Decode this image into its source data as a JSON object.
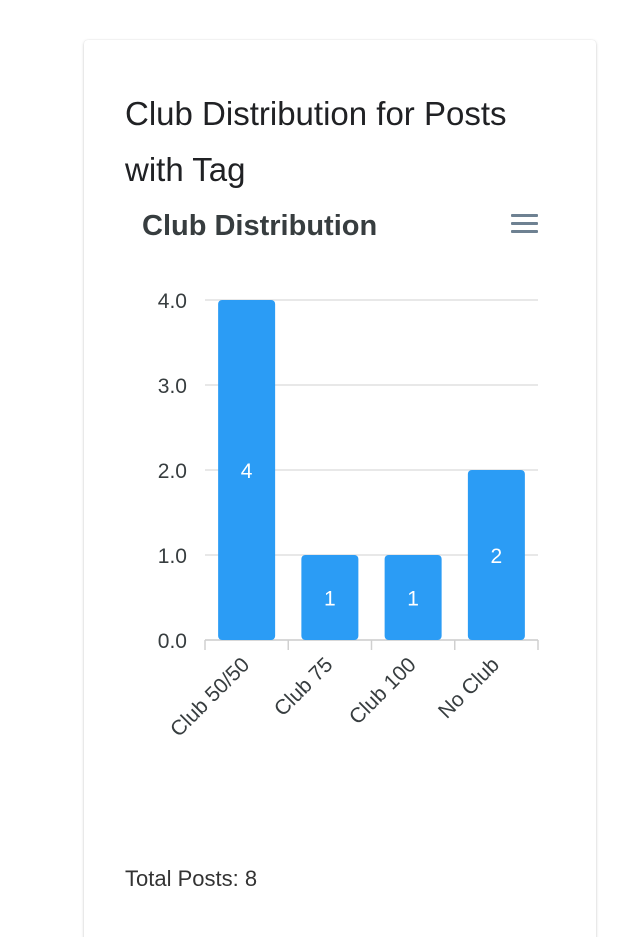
{
  "card": {
    "title": "Club Distribution for Posts with Tag",
    "chart_title": "Club Distribution",
    "menu_icon": "hamburger-menu-icon",
    "total_label": "Total Posts: 8"
  },
  "colors": {
    "bar": "#2b9cf5",
    "grid": "#e0e0e0",
    "axis_text": "#373d3f",
    "data_label": "#ffffff"
  },
  "chart_data": {
    "type": "bar",
    "title": "Club Distribution",
    "categories": [
      "Club 50/50",
      "Club 75",
      "Club 100",
      "No Club"
    ],
    "values": [
      4,
      1,
      1,
      2
    ],
    "data_labels": [
      "4",
      "1",
      "1",
      "2"
    ],
    "yticks": [
      "0.0",
      "1.0",
      "2.0",
      "3.0",
      "4.0"
    ],
    "ylim": [
      0,
      4
    ],
    "xlabel": "",
    "ylabel": "",
    "grid": true
  }
}
